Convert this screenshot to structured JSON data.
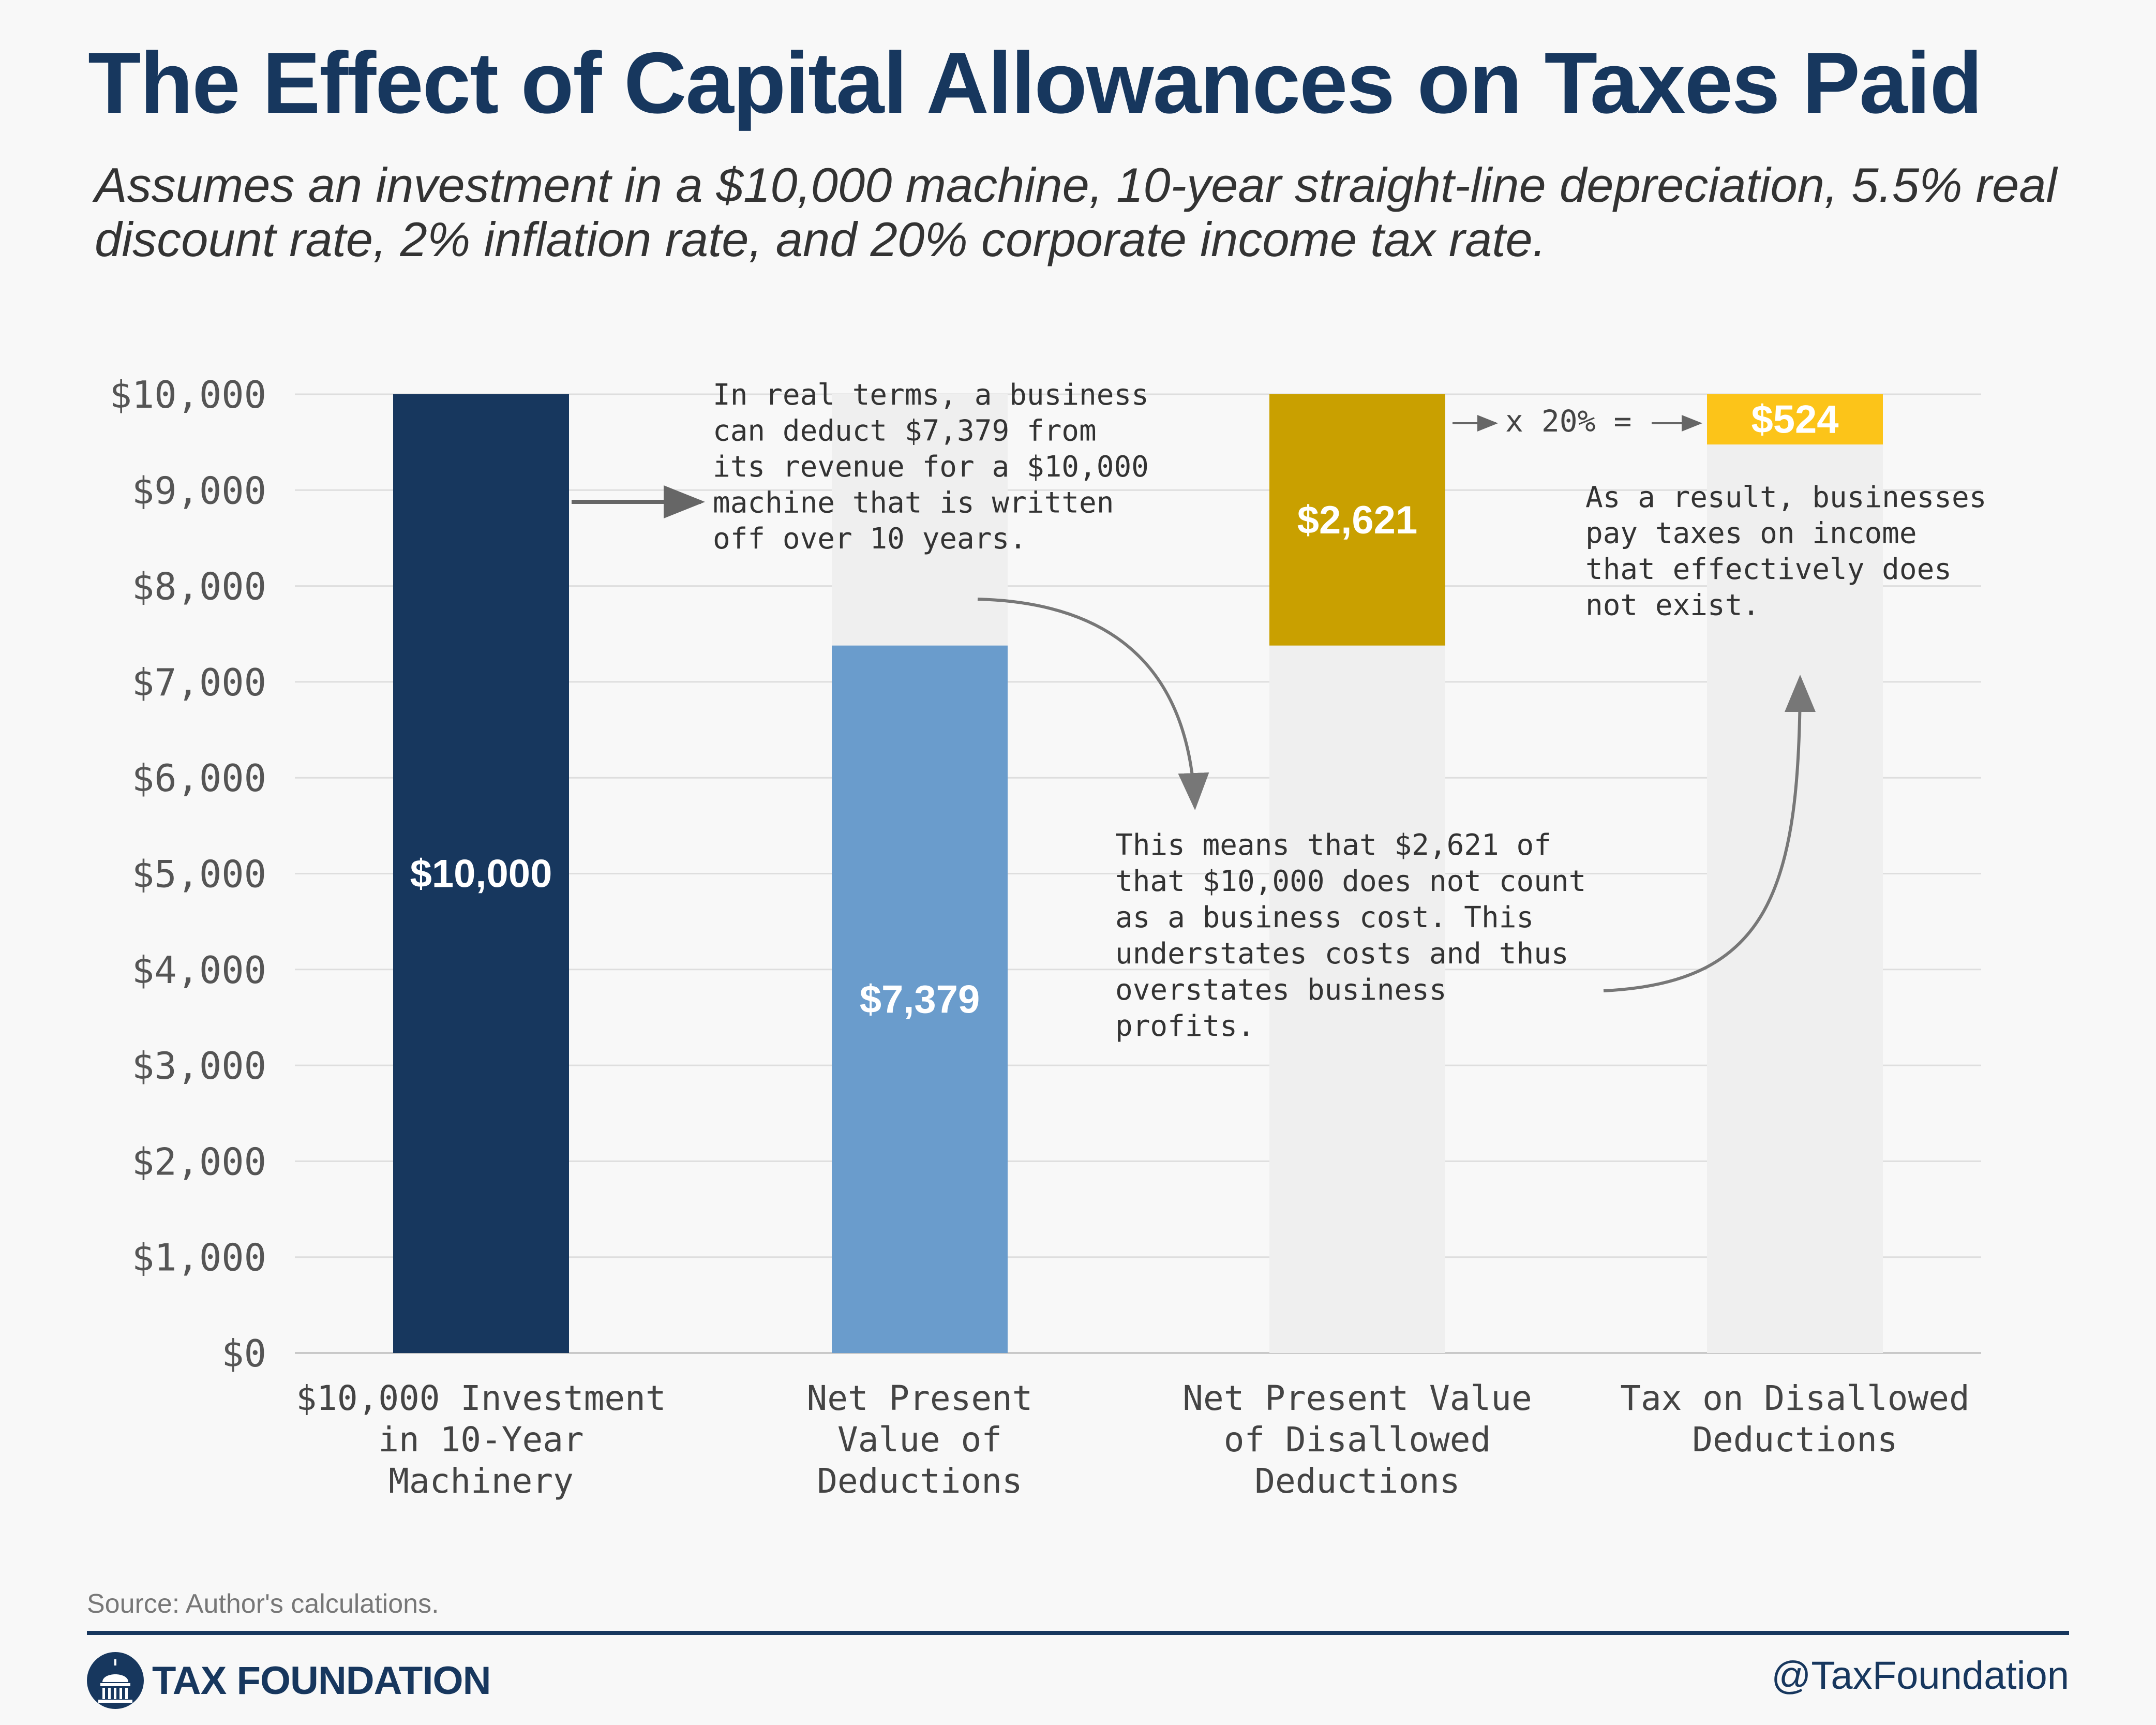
{
  "title": "The Effect of Capital Allowances on Taxes Paid",
  "subtitle": "Assumes an investment in a $10,000 machine, 10-year straight-line depreciation, 5.5% real discount rate, 2% inflation rate, and 20% corporate income tax rate.",
  "chart_data": {
    "type": "bar",
    "categories": [
      [
        "$10,000 Investment",
        "in 10-Year",
        "Machinery"
      ],
      [
        "Net Present",
        "Value of",
        "Deductions"
      ],
      [
        "Net Present Value",
        "of Disallowed",
        "Deductions"
      ],
      [
        "Tax on Disallowed",
        "Deductions"
      ]
    ],
    "bars": [
      {
        "base": 0,
        "value": 10000,
        "label": "$10,000",
        "color": "#17375e"
      },
      {
        "base": 0,
        "value": 7379,
        "label": "$7,379",
        "color": "#6a9ccc"
      },
      {
        "base": 7379,
        "value": 2621,
        "label": "$2,621",
        "color": "#c9a000"
      },
      {
        "base": 9476,
        "value": 524,
        "label": "$524",
        "color": "#fcc419"
      }
    ],
    "background_bar_color": "#efefef",
    "ylim": [
      0,
      10000
    ],
    "yticks": [
      "$0",
      "$1,000",
      "$2,000",
      "$3,000",
      "$4,000",
      "$5,000",
      "$6,000",
      "$7,000",
      "$8,000",
      "$9,000",
      "$10,000"
    ],
    "grid": true,
    "annotations": [
      [
        "In real terms, a business",
        "can deduct $7,379 from",
        "its revenue for a $10,000",
        "machine that is written",
        "off over 10 years."
      ],
      [
        "This means that $2,621 of",
        "that $10,000 does not count",
        "as a business cost. This",
        "understates costs and thus",
        "overstates business",
        "profits."
      ],
      [
        "As a result, businesses",
        "pay taxes on income",
        "that effectively does",
        "not exist."
      ]
    ],
    "multiplier_label": "x 20% ="
  },
  "source": "Source: Author's calculations.",
  "brand": "TAX FOUNDATION",
  "handle": "@TaxFoundation",
  "colors": {
    "brand": "#17375e",
    "arrow": "#777777"
  }
}
